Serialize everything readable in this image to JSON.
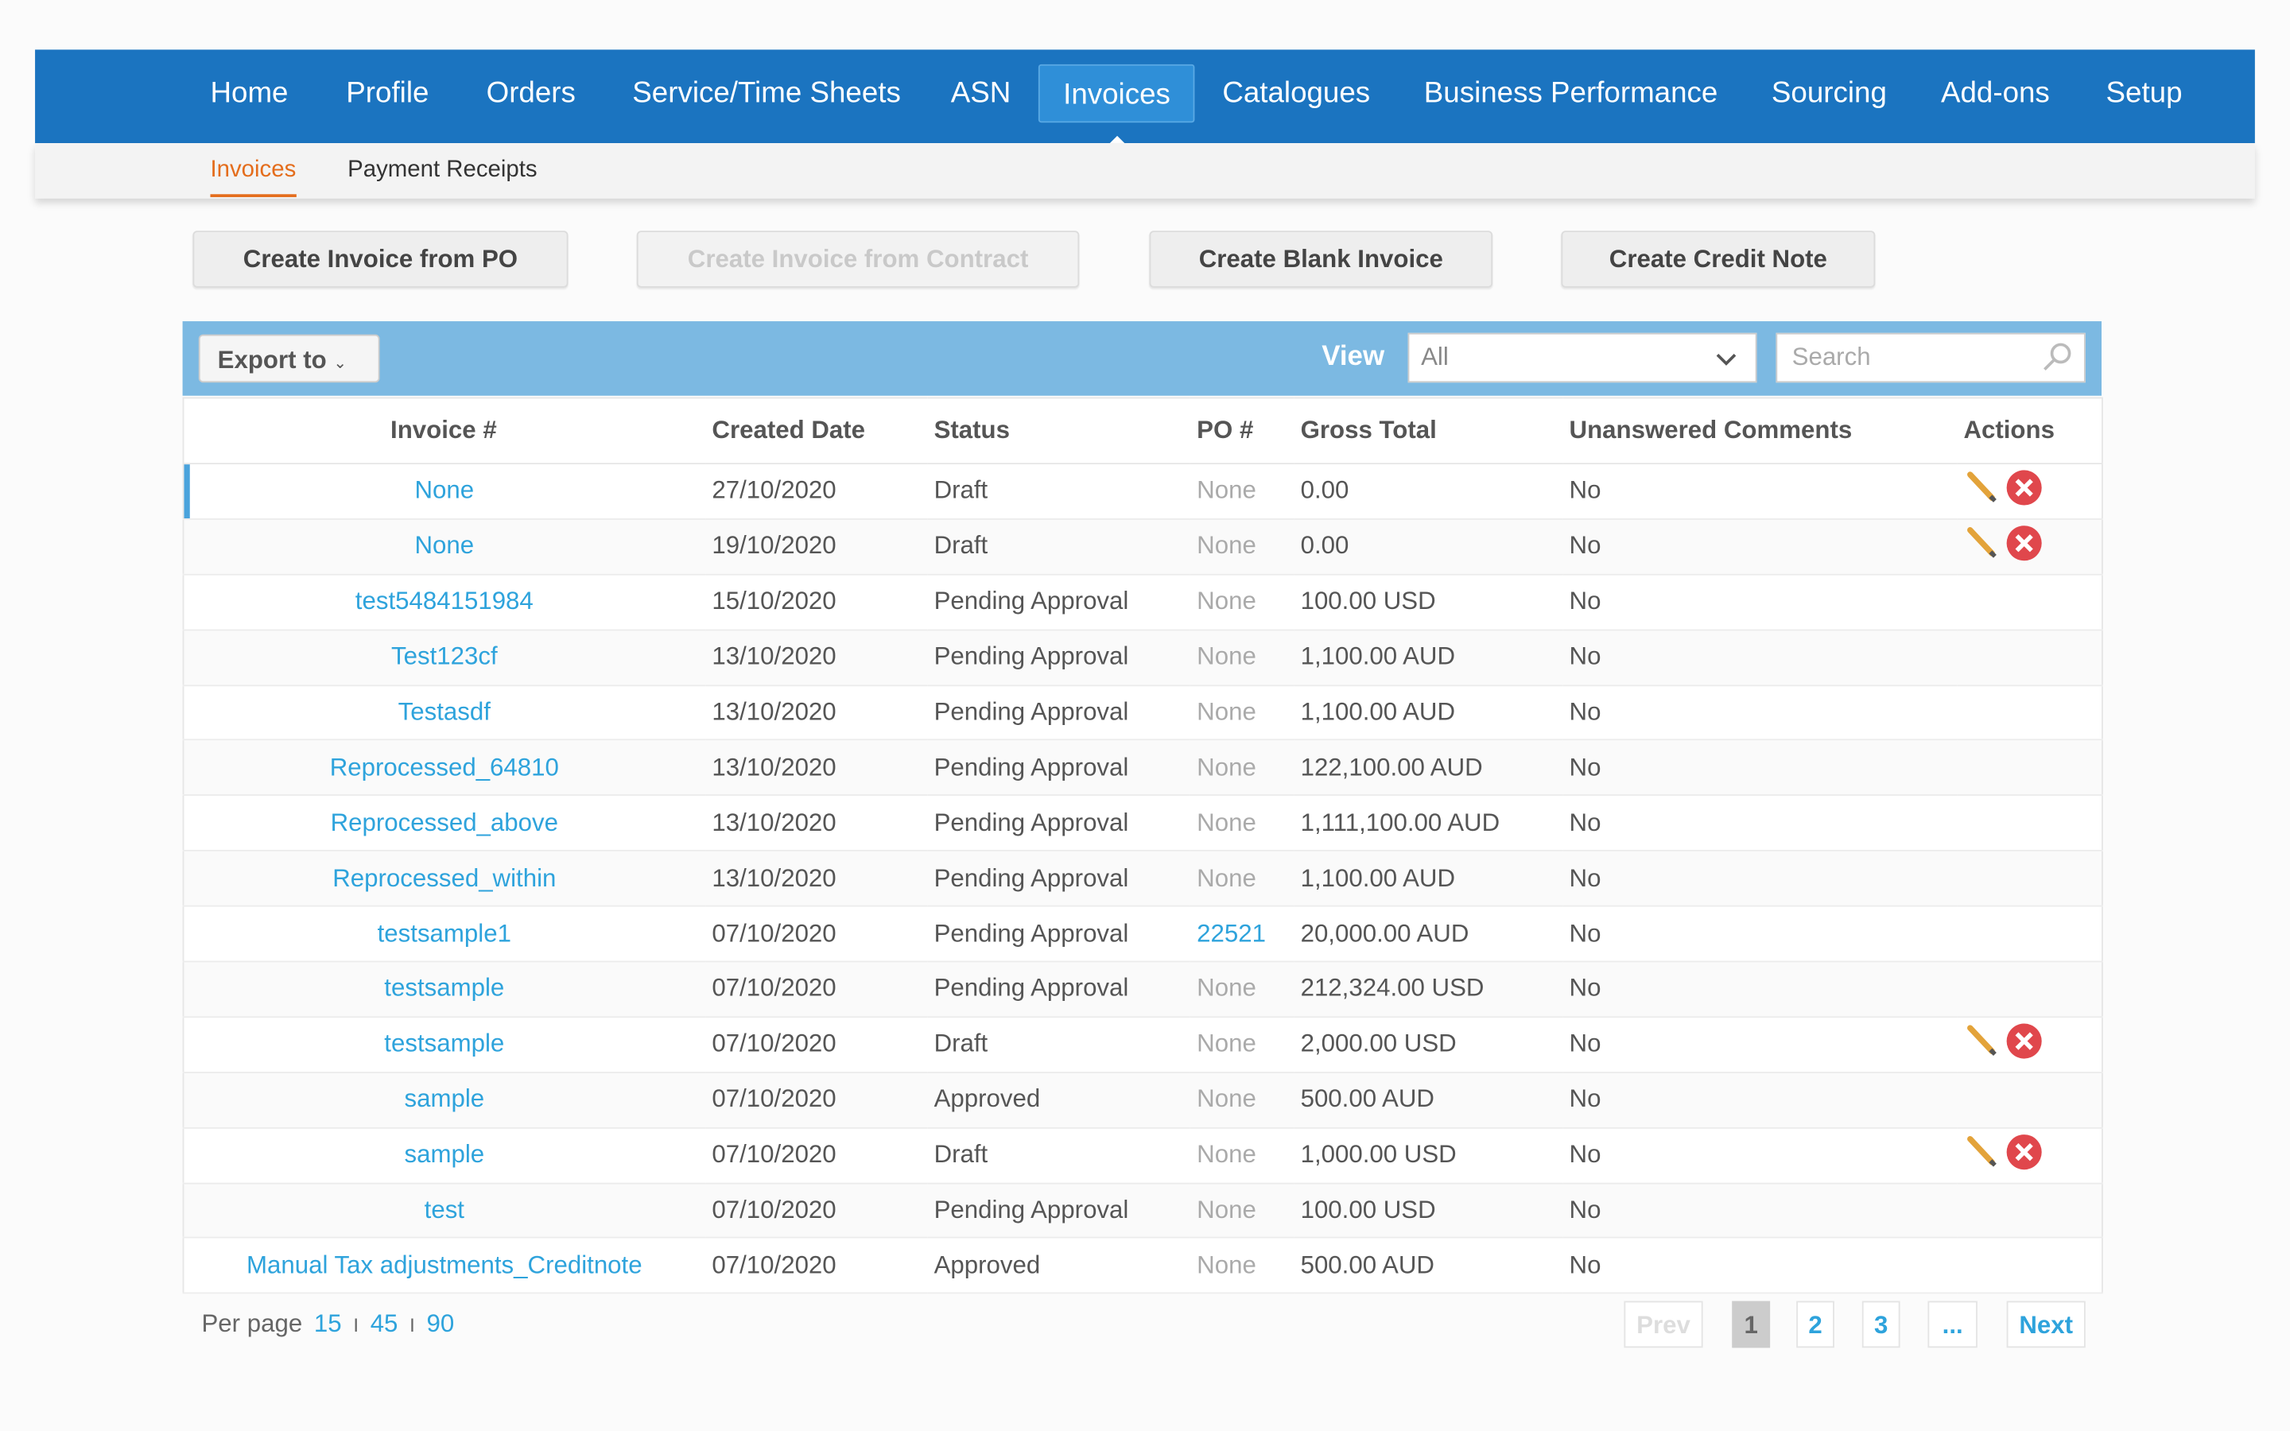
{
  "nav": {
    "items": [
      "Home",
      "Profile",
      "Orders",
      "Service/Time Sheets",
      "ASN",
      "Invoices",
      "Catalogues",
      "Business Performance",
      "Sourcing",
      "Add-ons",
      "Setup"
    ],
    "active": 5
  },
  "subnav": {
    "items": [
      "Invoices",
      "Payment Receipts"
    ],
    "active": 0
  },
  "buttons": [
    {
      "label": "Create Invoice from PO",
      "disabled": false
    },
    {
      "label": "Create Invoice from Contract",
      "disabled": true
    },
    {
      "label": "Create Blank Invoice",
      "disabled": false
    },
    {
      "label": "Create Credit Note",
      "disabled": false
    }
  ],
  "toolbar": {
    "export": "Export to",
    "view_label": "View",
    "view_value": "All",
    "search_placeholder": "Search"
  },
  "table": {
    "headers": [
      "Invoice #",
      "Created Date",
      "Status",
      "PO #",
      "Gross Total",
      "Unanswered Comments",
      "Actions"
    ],
    "rows": [
      {
        "invoice": "None",
        "created": "27/10/2020",
        "status": "Draft",
        "po": "None",
        "po_link": false,
        "total": "0.00",
        "comments": "No",
        "actions": true
      },
      {
        "invoice": "None",
        "created": "19/10/2020",
        "status": "Draft",
        "po": "None",
        "po_link": false,
        "total": "0.00",
        "comments": "No",
        "actions": true
      },
      {
        "invoice": "test5484151984",
        "created": "15/10/2020",
        "status": "Pending Approval",
        "po": "None",
        "po_link": false,
        "total": "100.00 USD",
        "comments": "No",
        "actions": false
      },
      {
        "invoice": "Test123cf",
        "created": "13/10/2020",
        "status": "Pending Approval",
        "po": "None",
        "po_link": false,
        "total": "1,100.00 AUD",
        "comments": "No",
        "actions": false
      },
      {
        "invoice": "Testasdf",
        "created": "13/10/2020",
        "status": "Pending Approval",
        "po": "None",
        "po_link": false,
        "total": "1,100.00 AUD",
        "comments": "No",
        "actions": false
      },
      {
        "invoice": "Reprocessed_64810",
        "created": "13/10/2020",
        "status": "Pending Approval",
        "po": "None",
        "po_link": false,
        "total": "122,100.00 AUD",
        "comments": "No",
        "actions": false
      },
      {
        "invoice": "Reprocessed_above",
        "created": "13/10/2020",
        "status": "Pending Approval",
        "po": "None",
        "po_link": false,
        "total": "1,111,100.00 AUD",
        "comments": "No",
        "actions": false
      },
      {
        "invoice": "Reprocessed_within",
        "created": "13/10/2020",
        "status": "Pending Approval",
        "po": "None",
        "po_link": false,
        "total": "1,100.00 AUD",
        "comments": "No",
        "actions": false
      },
      {
        "invoice": "testsample1",
        "created": "07/10/2020",
        "status": "Pending Approval",
        "po": "22521",
        "po_link": true,
        "total": "20,000.00 AUD",
        "comments": "No",
        "actions": false
      },
      {
        "invoice": "testsample",
        "created": "07/10/2020",
        "status": "Pending Approval",
        "po": "None",
        "po_link": false,
        "total": "212,324.00 USD",
        "comments": "No",
        "actions": false
      },
      {
        "invoice": "testsample",
        "created": "07/10/2020",
        "status": "Draft",
        "po": "None",
        "po_link": false,
        "total": "2,000.00 USD",
        "comments": "No",
        "actions": true
      },
      {
        "invoice": "sample",
        "created": "07/10/2020",
        "status": "Approved",
        "po": "None",
        "po_link": false,
        "total": "500.00 AUD",
        "comments": "No",
        "actions": false
      },
      {
        "invoice": "sample",
        "created": "07/10/2020",
        "status": "Draft",
        "po": "None",
        "po_link": false,
        "total": "1,000.00 USD",
        "comments": "No",
        "actions": true
      },
      {
        "invoice": "test",
        "created": "07/10/2020",
        "status": "Pending Approval",
        "po": "None",
        "po_link": false,
        "total": "100.00 USD",
        "comments": "No",
        "actions": false
      },
      {
        "invoice": "Manual Tax adjustments_Creditnote",
        "created": "07/10/2020",
        "status": "Approved",
        "po": "None",
        "po_link": false,
        "total": "500.00 AUD",
        "comments": "No",
        "actions": false
      }
    ]
  },
  "pagination": {
    "per_page_label": "Per page",
    "per_page_options": [
      "15",
      "45",
      "90"
    ],
    "separator": "I",
    "prev": "Prev",
    "pages": [
      "1",
      "2",
      "3"
    ],
    "current": 0,
    "ellipsis": "...",
    "next": "Next"
  }
}
